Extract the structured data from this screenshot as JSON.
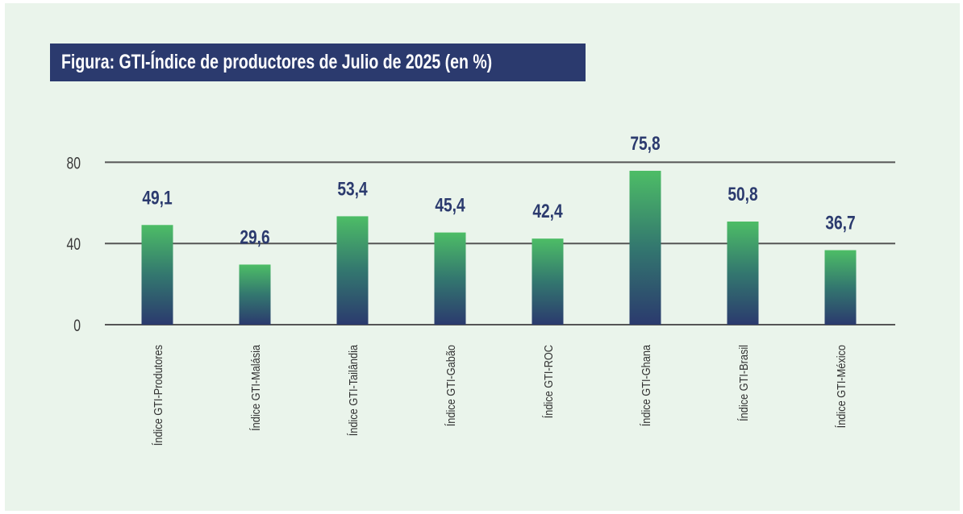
{
  "chart_data": {
    "type": "bar",
    "title": "Figura: GTI-Índice de productores de Julio de 2025 (en %)",
    "categories": [
      "Índice GTI-Produtores",
      "Índice GTI-Malásia",
      "Índice GTI-Tailândia",
      "Índice GTI-Gabão",
      "Índice GTI-ROC",
      "Índice GTI-Ghana",
      "Índice GTI-Brasil",
      "Índice GTI-México"
    ],
    "values": [
      49.1,
      29.6,
      53.4,
      45.4,
      42.4,
      75.8,
      50.8,
      36.7
    ],
    "value_labels": [
      "49,1",
      "29,6",
      "53,4",
      "45,4",
      "42,4",
      "75,8",
      "50,8",
      "36,7"
    ],
    "yticks": [
      "0",
      "40",
      "80"
    ],
    "ytick_values": [
      0,
      40,
      80
    ],
    "ylim": [
      0,
      80
    ],
    "xlabel": "",
    "ylabel": "",
    "grid": true,
    "legend": "none",
    "colors": {
      "bar_top": "#4dbd66",
      "bar_mid": "#33776f",
      "bar_bottom": "#2b3a6e",
      "title_bg": "#2b3a6e",
      "value_label": "#2b3a6e",
      "background": "#eaf4eb",
      "grid": "#555555"
    }
  }
}
